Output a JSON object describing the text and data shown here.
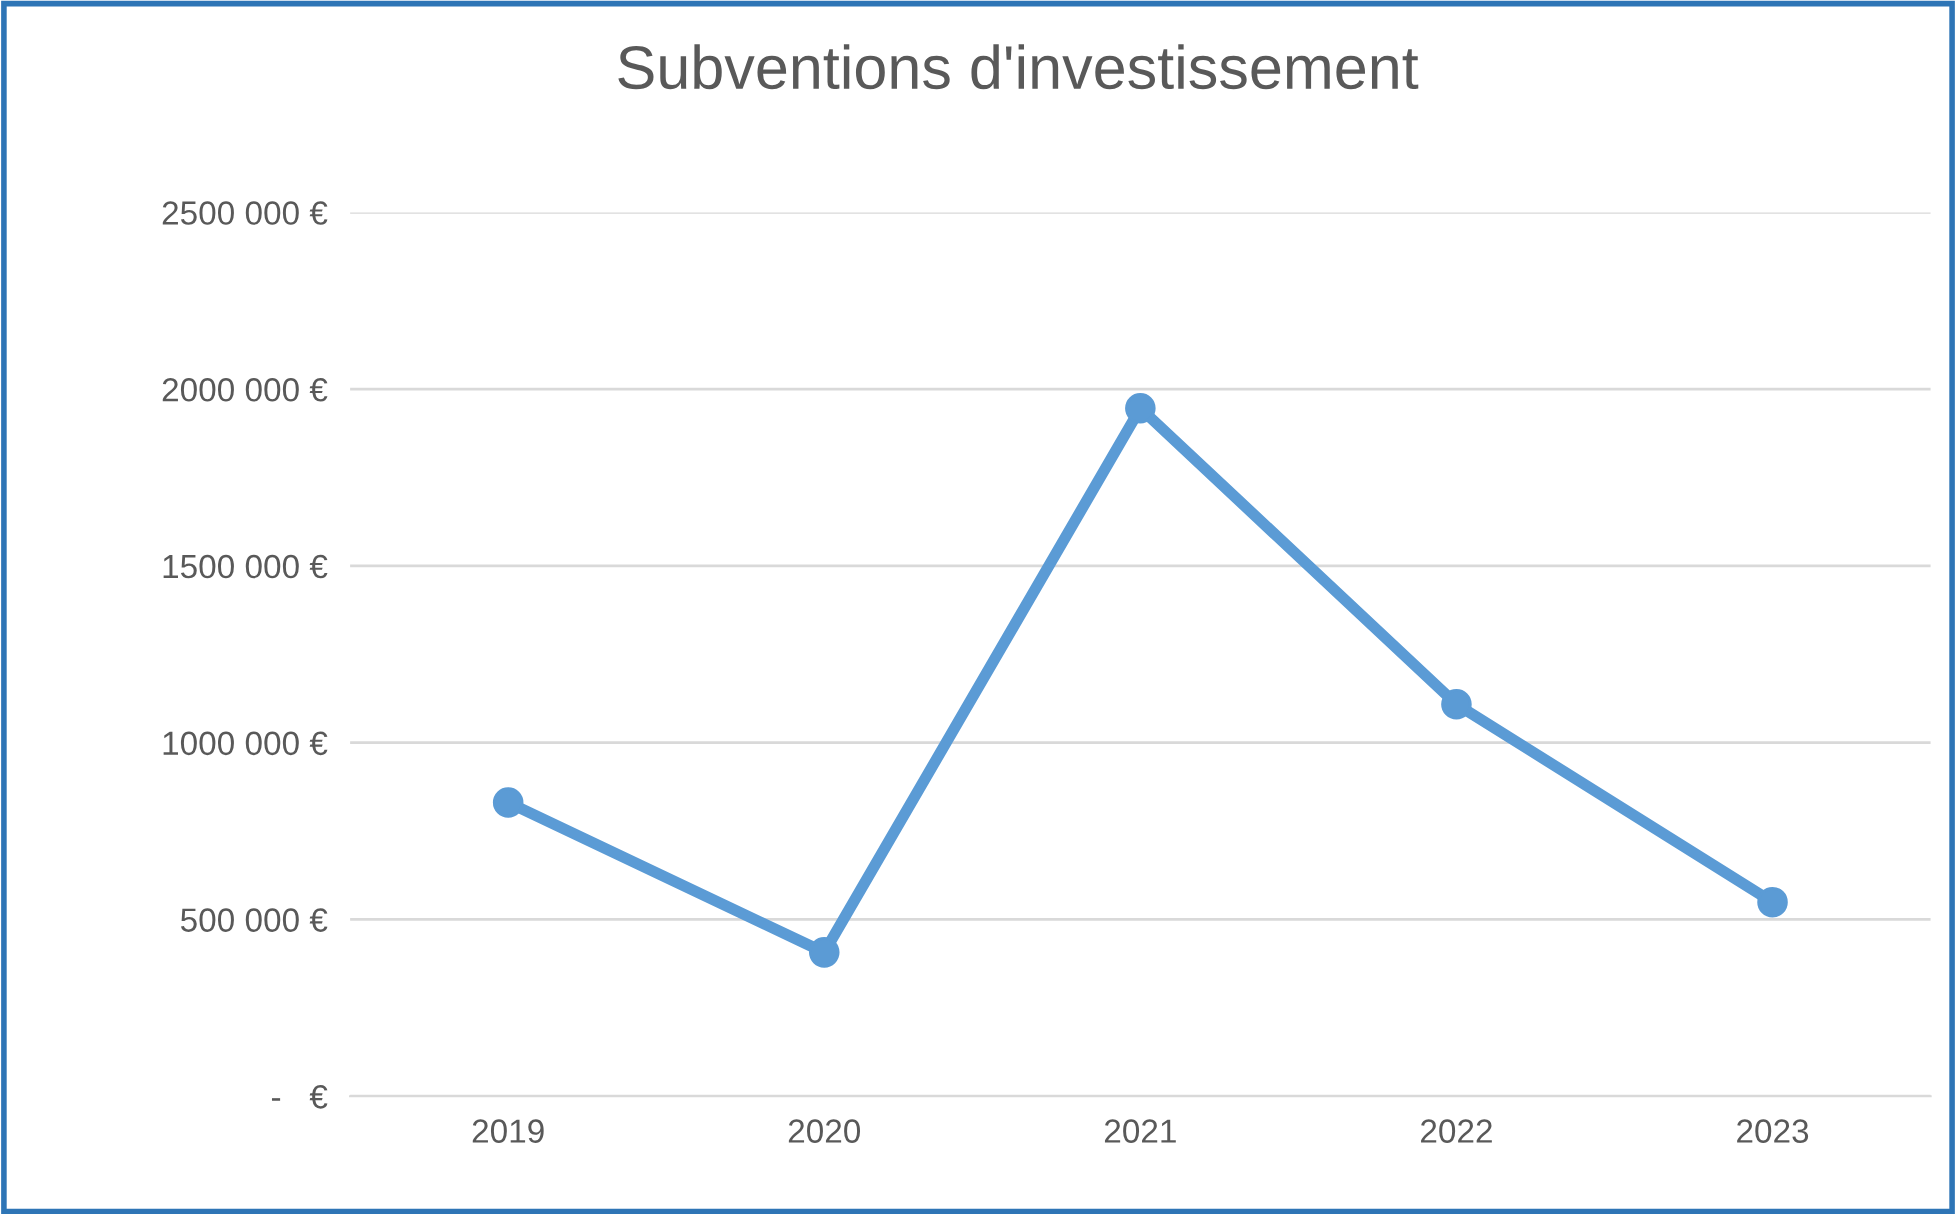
{
  "chart_data": {
    "type": "line",
    "title": "Subventions d'investissement",
    "categories": [
      "2019",
      "2020",
      "2021",
      "2022",
      "2023"
    ],
    "series": [
      {
        "color": "#5b9bd5",
        "values": [
          831000,
          407000,
          1946000,
          1109000,
          549000
        ]
      }
    ],
    "ylim": [
      0,
      2500000
    ],
    "yticks": [
      {
        "value": 0,
        "label": "-   €"
      },
      {
        "value": 500000,
        "label": "500 000 €"
      },
      {
        "value": 1000000,
        "label": "1000 000 €"
      },
      {
        "value": 1500000,
        "label": "1500 000 €"
      },
      {
        "value": 2000000,
        "label": "2000 000 €"
      },
      {
        "value": 2500000,
        "label": "2500 000 €"
      }
    ],
    "grid": "y",
    "marker": "circle",
    "line_style": "solid",
    "legend": false
  }
}
